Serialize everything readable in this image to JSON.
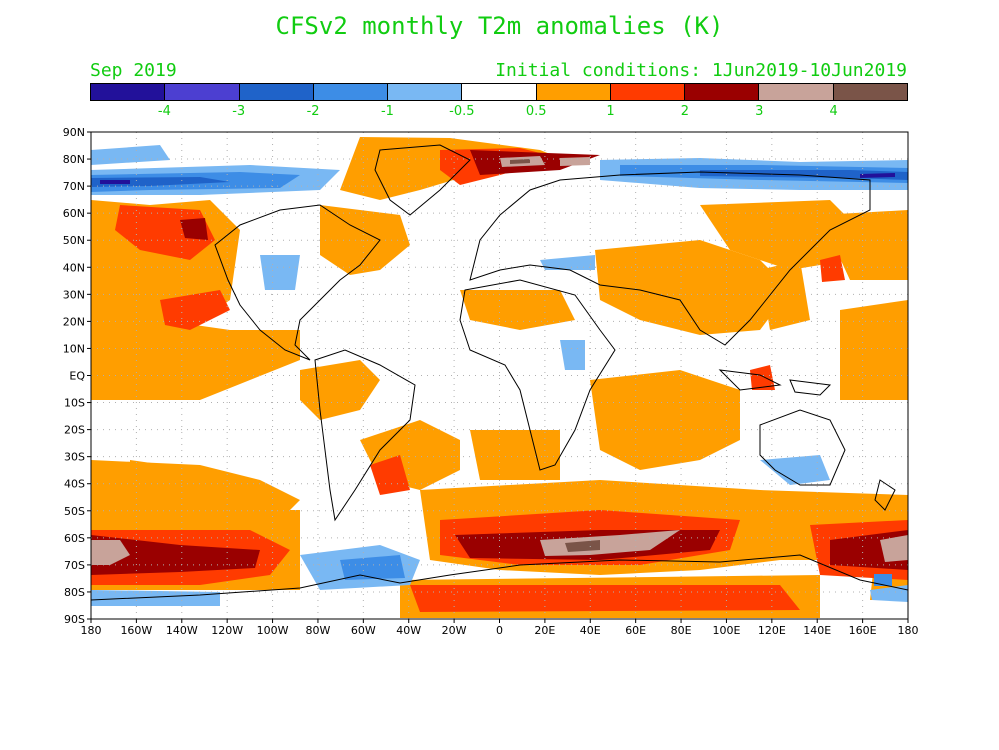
{
  "title": "CFSv2 monthly T2m anomalies (K)",
  "valid_month": "Sep 2019",
  "initial_conditions": "Initial conditions: 1Jun2019-10Jun2019",
  "colorbar": {
    "colors": [
      "#22119a",
      "#4c3fd1",
      "#1f63c9",
      "#3d8de6",
      "#79b8f3",
      "#ffffff",
      "#ff9e00",
      "#ff3b00",
      "#9a0000",
      "#c8a39a",
      "#7a5448"
    ],
    "labels": [
      "-4",
      "-3",
      "-2",
      "-1",
      "-0.5",
      "0.5",
      "1",
      "2",
      "3",
      "4"
    ]
  },
  "axes": {
    "lat_labels": [
      "90N",
      "80N",
      "70N",
      "60N",
      "50N",
      "40N",
      "30N",
      "20N",
      "10N",
      "EQ",
      "10S",
      "20S",
      "30S",
      "40S",
      "50S",
      "60S",
      "70S",
      "80S",
      "90S"
    ],
    "lon_labels": [
      "180",
      "160W",
      "140W",
      "120W",
      "100W",
      "80W",
      "60W",
      "40W",
      "20W",
      "0",
      "20E",
      "40E",
      "60E",
      "80E",
      "100E",
      "120E",
      "140E",
      "160E",
      "180"
    ]
  }
}
